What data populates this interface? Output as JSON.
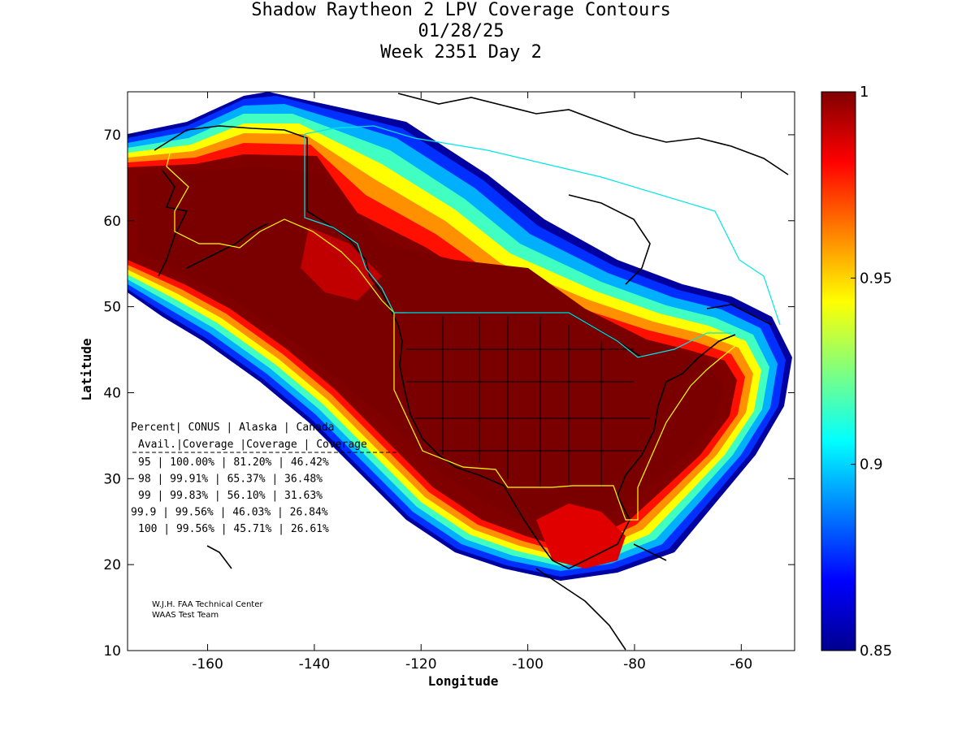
{
  "title": {
    "line1": "Shadow Raytheon 2 LPV Coverage Contours",
    "line2": "01/28/25",
    "line3": "Week 2351 Day 2"
  },
  "axes": {
    "xlabel": "Longitude",
    "ylabel": "Latitude",
    "xlim": [
      -175,
      -50
    ],
    "ylim": [
      10,
      75
    ],
    "x_ticks": [
      -160,
      -140,
      -120,
      -100,
      -80,
      -60
    ],
    "y_ticks": [
      10,
      20,
      30,
      40,
      50,
      60,
      70
    ]
  },
  "colorbar": {
    "min": 0.85,
    "max": 1,
    "ticks": [
      {
        "value": 1,
        "label": "1"
      },
      {
        "value": 0.95,
        "label": "0.95"
      },
      {
        "value": 0.9,
        "label": "0.9"
      },
      {
        "value": 0.85,
        "label": "0.85"
      }
    ]
  },
  "table": {
    "header1": [
      "Percent",
      "CONUS",
      "Alaska",
      "Canada"
    ],
    "header2": [
      "Avail.",
      "Coverage",
      "Coverage",
      "Coverage"
    ],
    "rows": [
      [
        "95",
        "100.00%",
        "81.20%",
        "46.42%"
      ],
      [
        "98",
        "99.91%",
        "65.37%",
        "36.48%"
      ],
      [
        "99",
        "99.83%",
        "56.10%",
        "31.63%"
      ],
      [
        "99.9",
        "99.56%",
        "46.03%",
        "26.84%"
      ],
      [
        "100",
        "99.56%",
        "45.71%",
        "26.61%"
      ]
    ]
  },
  "credit": {
    "line1": "W.J.H. FAA Technical Center",
    "line2": "WAAS Test Team"
  },
  "colors": {
    "core": "#800000",
    "region_outline": "#ffff00",
    "canada_outline": "#00e5e5"
  }
}
